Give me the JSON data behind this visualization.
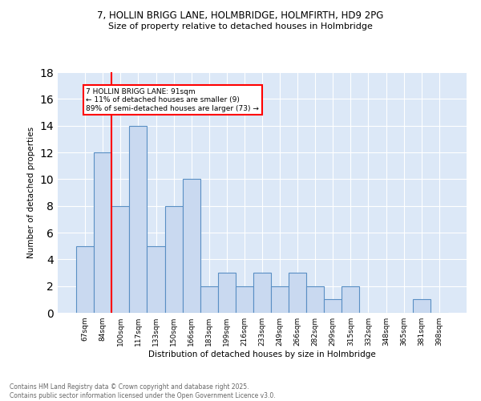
{
  "title1": "7, HOLLIN BRIGG LANE, HOLMBRIDGE, HOLMFIRTH, HD9 2PG",
  "title2": "Size of property relative to detached houses in Holmbridge",
  "xlabel": "Distribution of detached houses by size in Holmbridge",
  "ylabel": "Number of detached properties",
  "categories": [
    "67sqm",
    "84sqm",
    "100sqm",
    "117sqm",
    "133sqm",
    "150sqm",
    "166sqm",
    "183sqm",
    "199sqm",
    "216sqm",
    "233sqm",
    "249sqm",
    "266sqm",
    "282sqm",
    "299sqm",
    "315sqm",
    "332sqm",
    "348sqm",
    "365sqm",
    "381sqm",
    "398sqm"
  ],
  "values": [
    5,
    12,
    8,
    14,
    5,
    8,
    10,
    2,
    3,
    2,
    3,
    2,
    3,
    2,
    1,
    2,
    0,
    0,
    0,
    1,
    0
  ],
  "bar_color": "#c9d9f0",
  "bar_edge_color": "#5a8fc4",
  "annotation_text": "7 HOLLIN BRIGG LANE: 91sqm\n← 11% of detached houses are smaller (9)\n89% of semi-detached houses are larger (73) →",
  "annotation_box_color": "white",
  "annotation_box_edge": "red",
  "background_color": "#dce8f7",
  "grid_color": "white",
  "footer_text": "Contains HM Land Registry data © Crown copyright and database right 2025.\nContains public sector information licensed under the Open Government Licence v3.0.",
  "ylim": [
    0,
    18
  ],
  "yticks": [
    0,
    2,
    4,
    6,
    8,
    10,
    12,
    14,
    16,
    18
  ],
  "red_line_index": 1.5
}
